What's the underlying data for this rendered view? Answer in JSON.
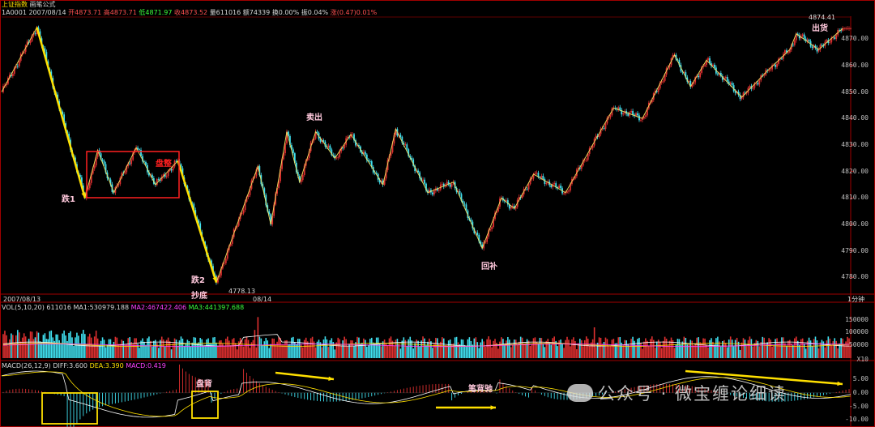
{
  "header": {
    "title": "上证指数",
    "formula": "画笔公式",
    "code": "1A0001",
    "date": "2007/08/14",
    "open": "开4873.71",
    "high": "高4873.71",
    "low": "低4871.97",
    "close": "收4873.52",
    "volume": "量611016",
    "amount": "额74339",
    "turnover": "换0.00%",
    "amplitude": "振0.04%",
    "change": "涨(0.47)0.01%"
  },
  "time_axis": {
    "left_date": "2007/08/13",
    "mid_date": "08/14",
    "period": "1分钟"
  },
  "vol_header": {
    "name": "VOL(5,10,20)",
    "value": "611016",
    "ma1": "MA1:530979.188",
    "ma2": "MA2:467422.406",
    "ma3": "MA3:441397.688"
  },
  "macd_header": {
    "name": "MACD(26,12,9)",
    "diff": "DIFF:3.600",
    "dea": "DEA:3.390",
    "macd": "MACD:0.419"
  },
  "annotations": {
    "die1": "跌1",
    "die2": "跌2",
    "chaodi": "抄底",
    "panzheng": "盘整",
    "maichu": "卖出",
    "huibu": "回补",
    "chuhuo": "出货",
    "panbei": "盘背",
    "bibeichi": "笔背驰",
    "low_label": "4778.13",
    "high_label": "4874.41"
  },
  "price_axis": [
    "4870.00",
    "4860.00",
    "4850.00",
    "4840.00",
    "4830.00",
    "4820.00",
    "4810.00",
    "4800.00",
    "4790.00",
    "4780.00"
  ],
  "vol_axis": [
    "150000",
    "100000",
    "50000",
    "X10"
  ],
  "macd_axis": [
    "5.00",
    "0.00",
    "-5.00",
    "-10.00"
  ],
  "watermark": "公众号 · 微宝缠论细读",
  "colors": {
    "up": "#e03030",
    "down": "#40e0f0",
    "yellow": "#ffe000",
    "white": "#ffffff",
    "magenta": "#ff40ff",
    "green": "#3cff3c",
    "border": "#a00000"
  },
  "chart_data": {
    "type": "candlestick",
    "ylim": [
      4774,
      4878
    ],
    "bi_points": [
      {
        "i": 0,
        "p": 4850
      },
      {
        "i": 22,
        "p": 4874.4
      },
      {
        "i": 52,
        "p": 4810
      },
      {
        "i": 60,
        "p": 4828
      },
      {
        "i": 70,
        "p": 4812
      },
      {
        "i": 84,
        "p": 4829
      },
      {
        "i": 96,
        "p": 4815
      },
      {
        "i": 110,
        "p": 4824
      },
      {
        "i": 134,
        "p": 4778.1
      },
      {
        "i": 160,
        "p": 4822
      },
      {
        "i": 168,
        "p": 4800
      },
      {
        "i": 178,
        "p": 4835
      },
      {
        "i": 186,
        "p": 4816
      },
      {
        "i": 196,
        "p": 4835
      },
      {
        "i": 208,
        "p": 4825
      },
      {
        "i": 218,
        "p": 4834
      },
      {
        "i": 238,
        "p": 4815
      },
      {
        "i": 246,
        "p": 4836
      },
      {
        "i": 266,
        "p": 4812
      },
      {
        "i": 282,
        "p": 4816
      },
      {
        "i": 300,
        "p": 4791
      },
      {
        "i": 312,
        "p": 4810
      },
      {
        "i": 320,
        "p": 4806
      },
      {
        "i": 332,
        "p": 4819
      },
      {
        "i": 352,
        "p": 4812
      },
      {
        "i": 382,
        "p": 4844
      },
      {
        "i": 400,
        "p": 4840
      },
      {
        "i": 420,
        "p": 4864
      },
      {
        "i": 430,
        "p": 4852
      },
      {
        "i": 440,
        "p": 4862
      },
      {
        "i": 462,
        "p": 4848
      },
      {
        "i": 478,
        "p": 4858
      },
      {
        "i": 492,
        "p": 4866
      },
      {
        "i": 496,
        "p": 4872
      },
      {
        "i": 510,
        "p": 4866
      },
      {
        "i": 525,
        "p": 4874
      }
    ]
  }
}
